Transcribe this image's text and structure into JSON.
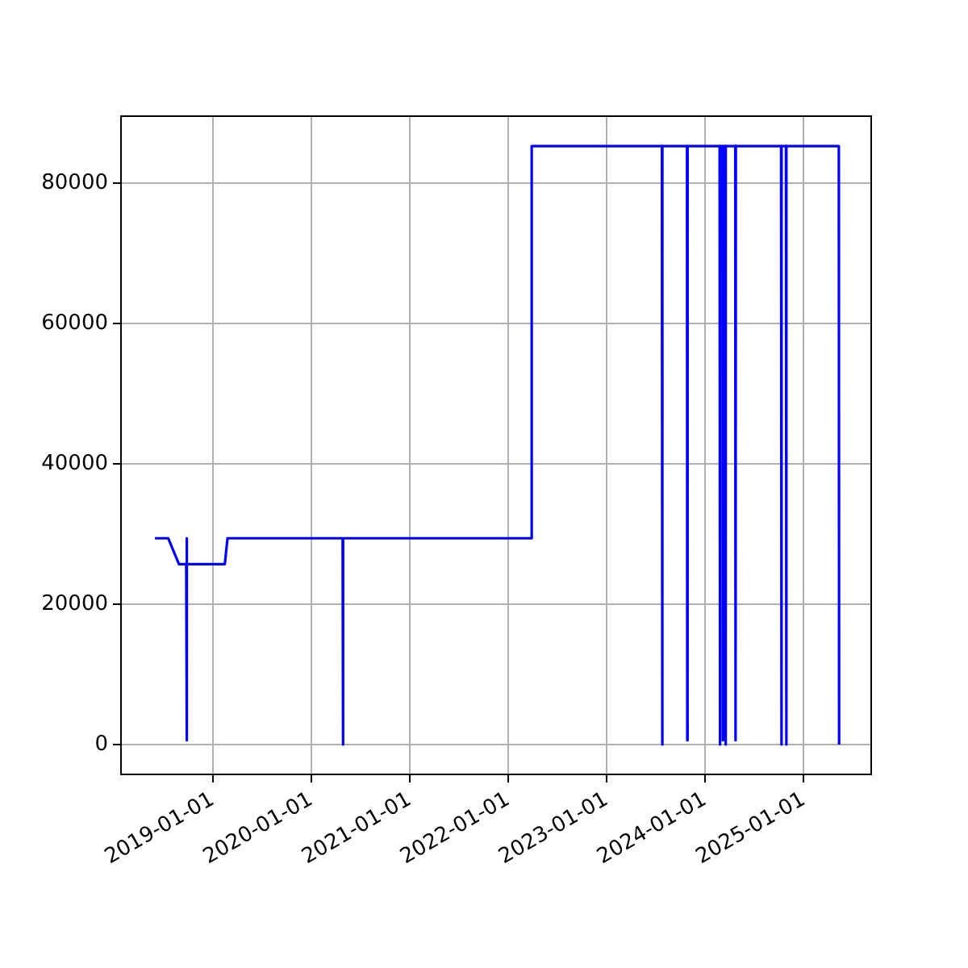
{
  "chart_data": {
    "type": "line",
    "color": "#0000ff",
    "grid": true,
    "x": [
      "2018-06-01",
      "2018-07-20",
      "2018-08-29",
      "2018-09-25",
      "2018-09-26",
      "2018-09-27",
      "2018-09-28",
      "2019-02-15",
      "2019-02-25",
      "2020-04-27",
      "2020-04-28",
      "2020-04-29",
      "2022-03-28",
      "2022-03-29",
      "2023-07-25",
      "2023-07-26",
      "2023-07-27",
      "2023-10-26",
      "2023-10-27",
      "2023-10-28",
      "2024-02-24",
      "2024-02-25",
      "2024-02-26",
      "2024-03-06",
      "2024-03-07",
      "2024-03-08",
      "2024-03-16",
      "2024-03-17",
      "2024-03-18",
      "2024-04-22",
      "2024-04-23",
      "2024-04-24",
      "2024-10-09",
      "2024-10-10",
      "2024-10-11",
      "2024-10-27",
      "2024-10-28",
      "2024-10-29",
      "2025-05-11",
      "2025-05-12"
    ],
    "values": [
      29400,
      29400,
      25700,
      25700,
      29400,
      600,
      25700,
      25700,
      29400,
      29400,
      0,
      29400,
      29400,
      85300,
      85300,
      0,
      85300,
      85300,
      600,
      85300,
      85300,
      0,
      85300,
      85300,
      600,
      85300,
      85300,
      0,
      85300,
      85300,
      600,
      85300,
      85300,
      0,
      85300,
      85300,
      0,
      85300,
      85300,
      0
    ],
    "xlim": [
      "2018-01-26",
      "2025-09-08"
    ],
    "xticks": [
      "2019-01-01",
      "2020-01-01",
      "2021-01-01",
      "2022-01-01",
      "2023-01-01",
      "2024-01-01",
      "2025-01-01"
    ],
    "ylim": [
      -4265,
      89565
    ],
    "yticks": [
      0,
      20000,
      40000,
      60000,
      80000
    ]
  }
}
